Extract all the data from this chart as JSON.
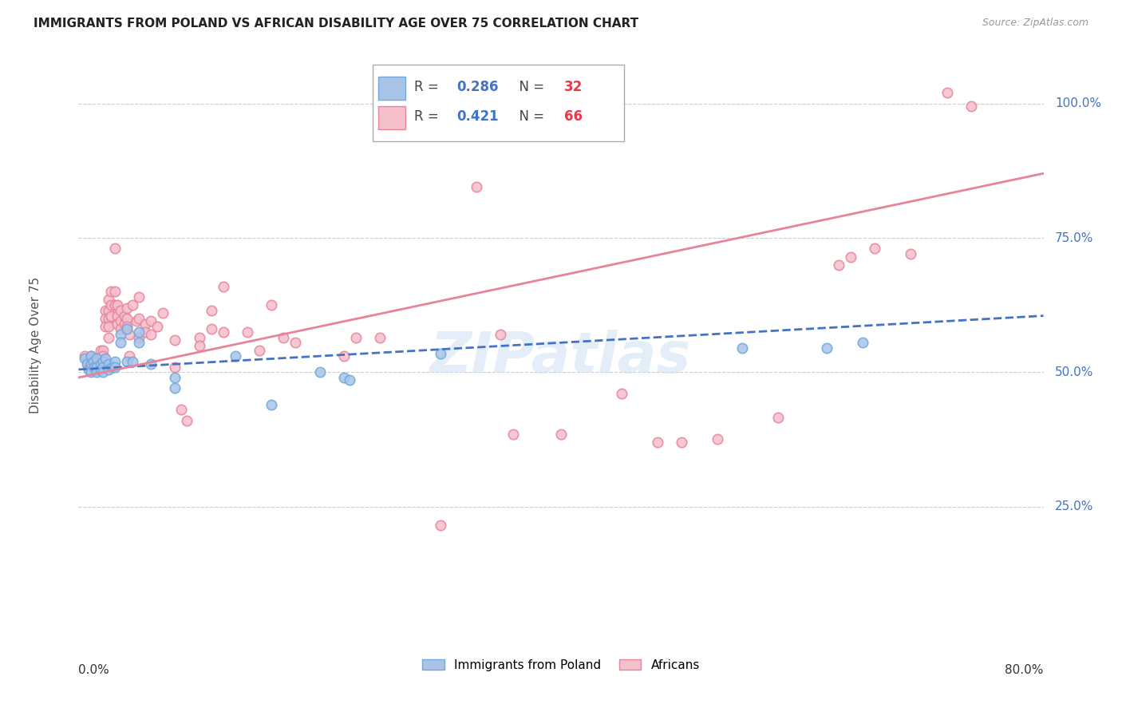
{
  "title": "IMMIGRANTS FROM POLAND VS AFRICAN DISABILITY AGE OVER 75 CORRELATION CHART",
  "source": "Source: ZipAtlas.com",
  "ylabel": "Disability Age Over 75",
  "xlim": [
    0.0,
    0.8
  ],
  "ylim": [
    0.0,
    1.1
  ],
  "yticks": [
    0.25,
    0.5,
    0.75,
    1.0
  ],
  "ytick_labels": [
    "25.0%",
    "50.0%",
    "75.0%",
    "100.0%"
  ],
  "grid_color": "#cccccc",
  "background_color": "#ffffff",
  "watermark": "ZIPatlas",
  "poland_color": "#6fa8dc",
  "poland_fill": "#aac4e8",
  "african_color": "#e8849a",
  "african_fill": "#f5bfcc",
  "poland_line_color": "#4472c4",
  "african_line_color": "#e8849a",
  "poland_scatter": [
    [
      0.005,
      0.525
    ],
    [
      0.007,
      0.515
    ],
    [
      0.008,
      0.505
    ],
    [
      0.01,
      0.53
    ],
    [
      0.01,
      0.515
    ],
    [
      0.01,
      0.5
    ],
    [
      0.012,
      0.52
    ],
    [
      0.013,
      0.51
    ],
    [
      0.015,
      0.525
    ],
    [
      0.015,
      0.51
    ],
    [
      0.015,
      0.5
    ],
    [
      0.018,
      0.515
    ],
    [
      0.018,
      0.505
    ],
    [
      0.02,
      0.52
    ],
    [
      0.02,
      0.51
    ],
    [
      0.02,
      0.5
    ],
    [
      0.022,
      0.525
    ],
    [
      0.025,
      0.515
    ],
    [
      0.025,
      0.505
    ],
    [
      0.028,
      0.51
    ],
    [
      0.03,
      0.52
    ],
    [
      0.03,
      0.51
    ],
    [
      0.035,
      0.57
    ],
    [
      0.035,
      0.555
    ],
    [
      0.04,
      0.58
    ],
    [
      0.04,
      0.52
    ],
    [
      0.045,
      0.52
    ],
    [
      0.05,
      0.575
    ],
    [
      0.05,
      0.555
    ],
    [
      0.06,
      0.515
    ],
    [
      0.08,
      0.49
    ],
    [
      0.08,
      0.47
    ],
    [
      0.13,
      0.53
    ],
    [
      0.16,
      0.44
    ],
    [
      0.2,
      0.5
    ],
    [
      0.22,
      0.49
    ],
    [
      0.225,
      0.485
    ],
    [
      0.3,
      0.535
    ],
    [
      0.55,
      0.545
    ],
    [
      0.62,
      0.545
    ],
    [
      0.65,
      0.555
    ]
  ],
  "african_scatter": [
    [
      0.005,
      0.53
    ],
    [
      0.007,
      0.52
    ],
    [
      0.008,
      0.51
    ],
    [
      0.01,
      0.53
    ],
    [
      0.01,
      0.515
    ],
    [
      0.01,
      0.505
    ],
    [
      0.012,
      0.525
    ],
    [
      0.015,
      0.515
    ],
    [
      0.015,
      0.505
    ],
    [
      0.018,
      0.54
    ],
    [
      0.018,
      0.525
    ],
    [
      0.02,
      0.54
    ],
    [
      0.02,
      0.53
    ],
    [
      0.022,
      0.615
    ],
    [
      0.022,
      0.6
    ],
    [
      0.022,
      0.585
    ],
    [
      0.025,
      0.635
    ],
    [
      0.025,
      0.615
    ],
    [
      0.025,
      0.6
    ],
    [
      0.025,
      0.585
    ],
    [
      0.025,
      0.565
    ],
    [
      0.027,
      0.65
    ],
    [
      0.027,
      0.625
    ],
    [
      0.027,
      0.605
    ],
    [
      0.03,
      0.73
    ],
    [
      0.03,
      0.65
    ],
    [
      0.03,
      0.625
    ],
    [
      0.032,
      0.625
    ],
    [
      0.032,
      0.605
    ],
    [
      0.032,
      0.59
    ],
    [
      0.035,
      0.615
    ],
    [
      0.035,
      0.595
    ],
    [
      0.035,
      0.58
    ],
    [
      0.038,
      0.605
    ],
    [
      0.038,
      0.59
    ],
    [
      0.04,
      0.62
    ],
    [
      0.04,
      0.6
    ],
    [
      0.04,
      0.585
    ],
    [
      0.042,
      0.57
    ],
    [
      0.042,
      0.53
    ],
    [
      0.045,
      0.625
    ],
    [
      0.048,
      0.595
    ],
    [
      0.05,
      0.64
    ],
    [
      0.05,
      0.6
    ],
    [
      0.05,
      0.565
    ],
    [
      0.055,
      0.59
    ],
    [
      0.055,
      0.575
    ],
    [
      0.06,
      0.595
    ],
    [
      0.06,
      0.57
    ],
    [
      0.065,
      0.585
    ],
    [
      0.07,
      0.61
    ],
    [
      0.08,
      0.56
    ],
    [
      0.08,
      0.51
    ],
    [
      0.085,
      0.43
    ],
    [
      0.09,
      0.41
    ],
    [
      0.1,
      0.565
    ],
    [
      0.1,
      0.55
    ],
    [
      0.11,
      0.615
    ],
    [
      0.11,
      0.58
    ],
    [
      0.12,
      0.66
    ],
    [
      0.12,
      0.575
    ],
    [
      0.14,
      0.575
    ],
    [
      0.15,
      0.54
    ],
    [
      0.16,
      0.625
    ],
    [
      0.17,
      0.565
    ],
    [
      0.18,
      0.555
    ],
    [
      0.22,
      0.53
    ],
    [
      0.23,
      0.565
    ],
    [
      0.25,
      0.565
    ],
    [
      0.3,
      0.215
    ],
    [
      0.33,
      0.845
    ],
    [
      0.35,
      0.57
    ],
    [
      0.36,
      0.385
    ],
    [
      0.4,
      0.385
    ],
    [
      0.45,
      0.46
    ],
    [
      0.48,
      0.37
    ],
    [
      0.5,
      0.37
    ],
    [
      0.53,
      0.375
    ],
    [
      0.58,
      0.415
    ],
    [
      0.63,
      0.7
    ],
    [
      0.64,
      0.715
    ],
    [
      0.66,
      0.73
    ],
    [
      0.69,
      0.72
    ],
    [
      0.72,
      1.02
    ],
    [
      0.74,
      0.995
    ]
  ],
  "poland_trendline_x": [
    0.0,
    0.8
  ],
  "poland_trendline_y": [
    0.505,
    0.605
  ],
  "african_trendline_x": [
    0.0,
    0.8
  ],
  "african_trendline_y": [
    0.49,
    0.87
  ]
}
